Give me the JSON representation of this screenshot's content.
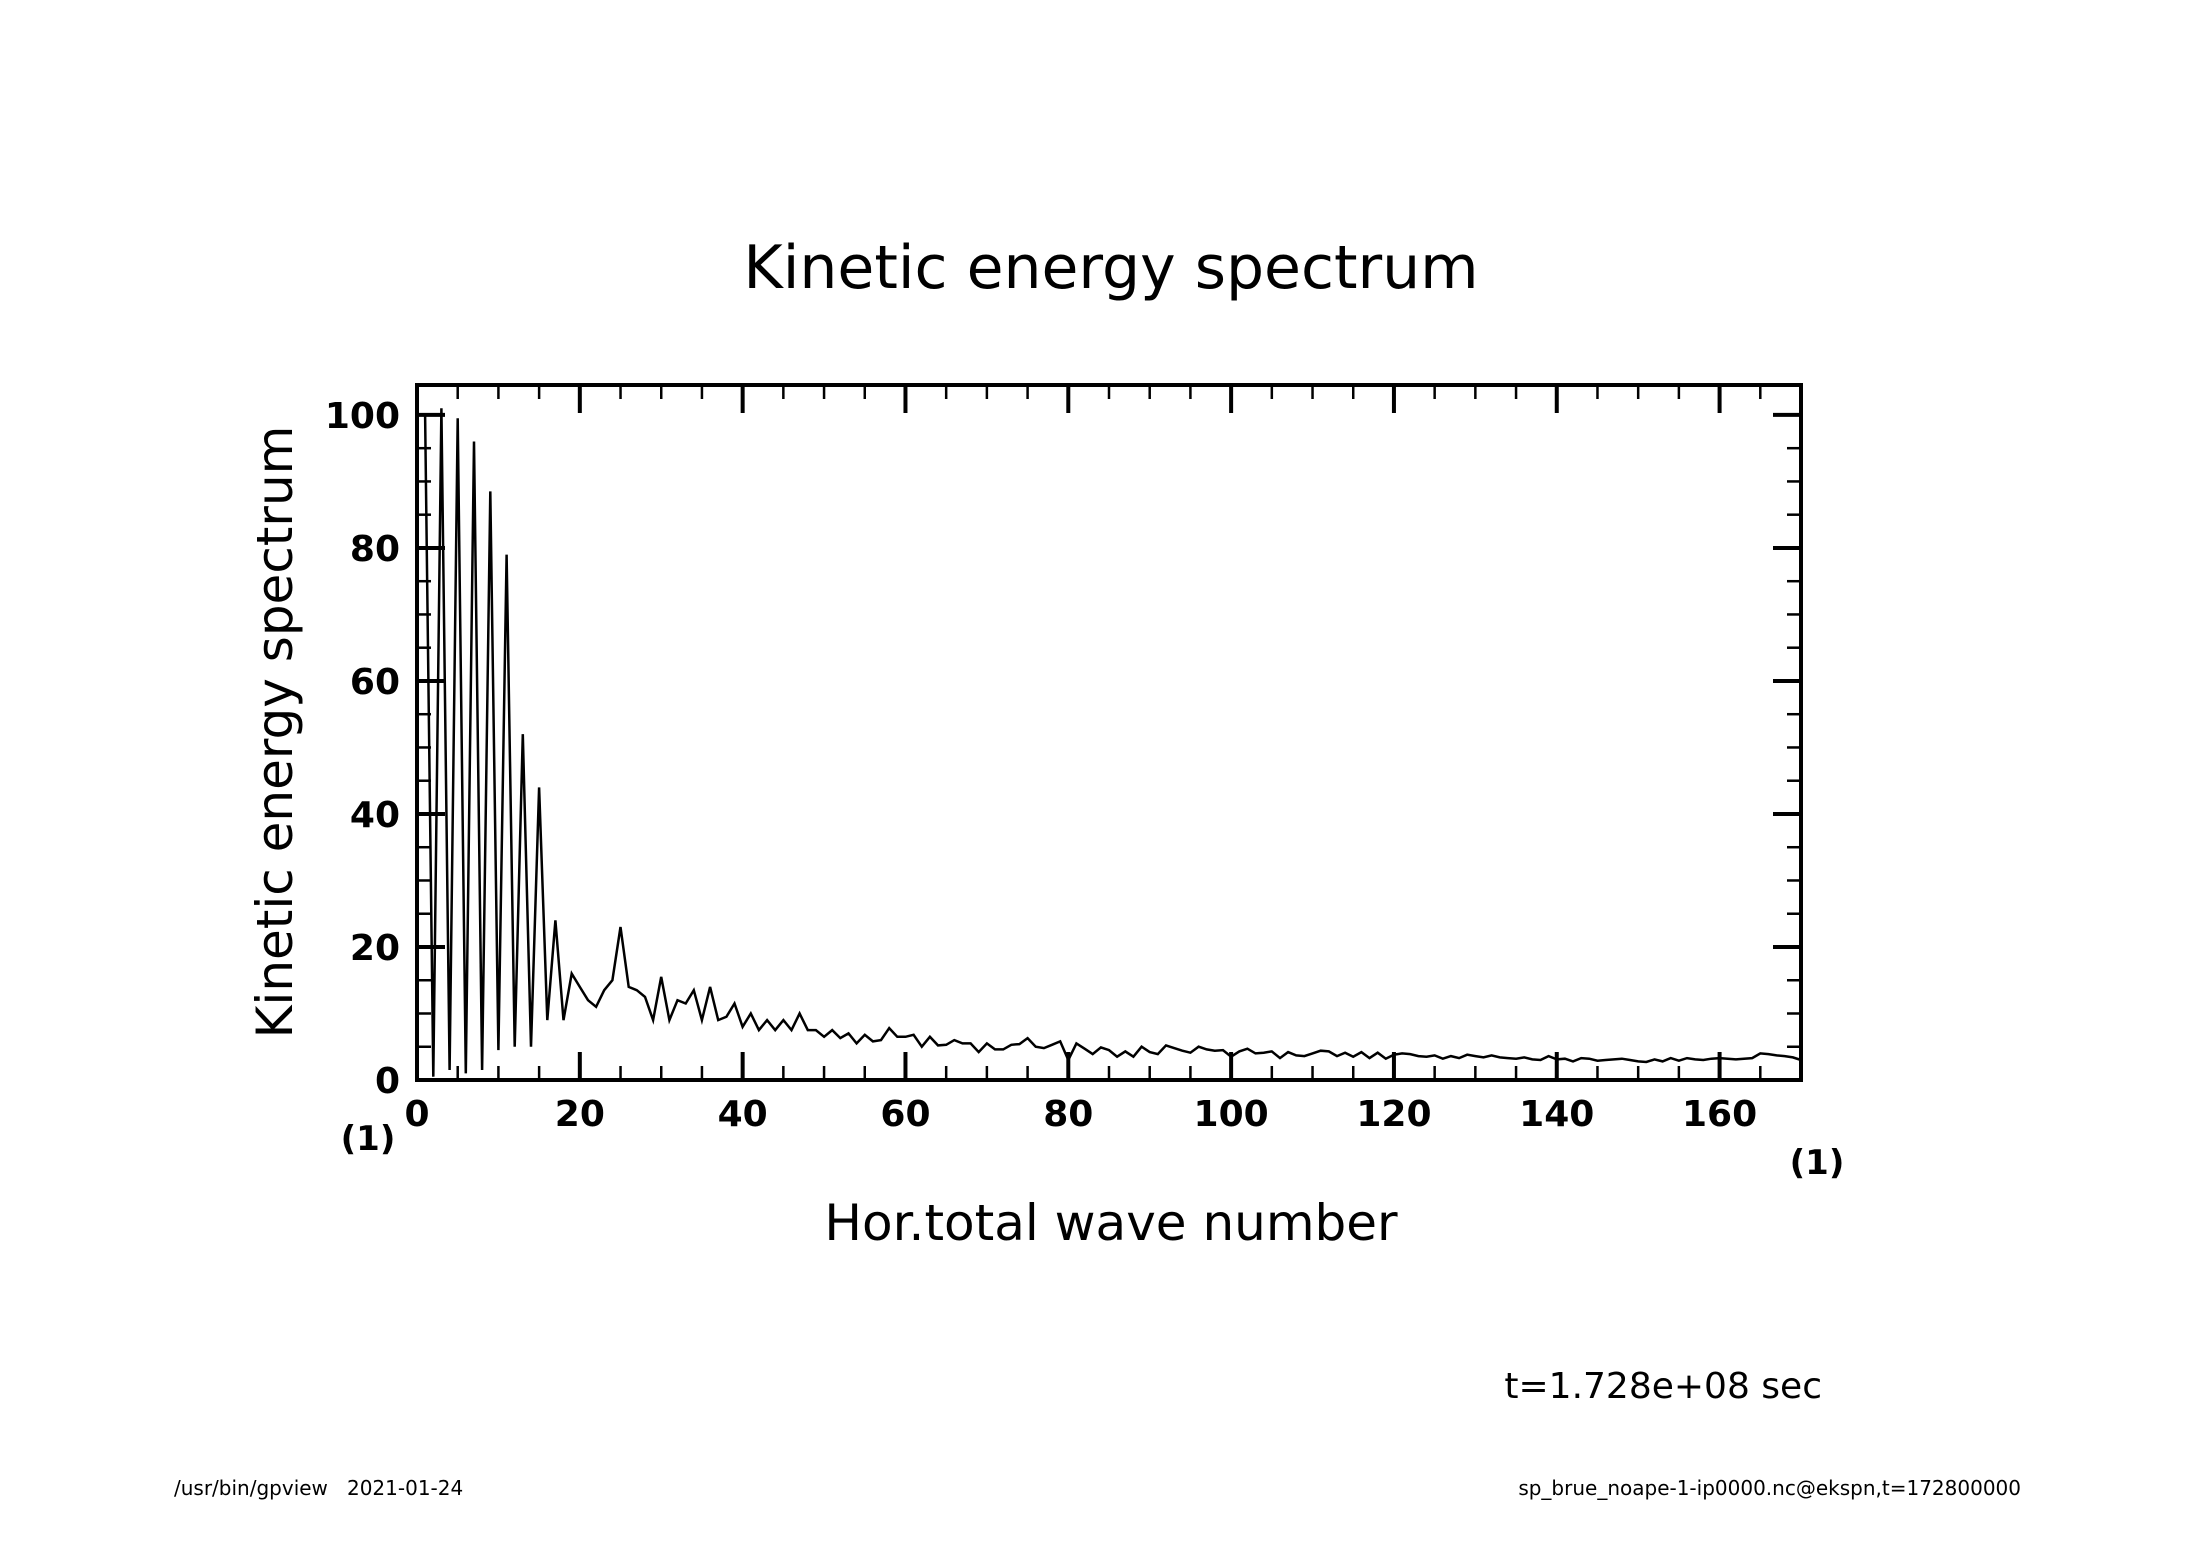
{
  "chart_data": {
    "type": "line",
    "title": "Kinetic energy spectrum",
    "xlabel": "Hor.total wave number",
    "ylabel": "Kinetic energy spectrum",
    "x_unit": "(1)",
    "y_unit": "(1)",
    "xlim": [
      0,
      170
    ],
    "ylim": [
      0,
      104.5
    ],
    "xticks": [
      0,
      20,
      40,
      60,
      80,
      100,
      120,
      140,
      160
    ],
    "yticks": [
      0,
      20,
      40,
      60,
      80,
      100
    ],
    "x_minor_step": 5,
    "y_minor_step": 5,
    "grid": false,
    "x_start": 1,
    "values": [
      100,
      0.5,
      101,
      1.5,
      99.5,
      1,
      96,
      1.5,
      88.5,
      4.5,
      79,
      5,
      52,
      5,
      44,
      9,
      24,
      9,
      16,
      14,
      12,
      11,
      13.5,
      15,
      23,
      14,
      13.5,
      12.5,
      9,
      15.5,
      9,
      12,
      11.5,
      13.5,
      9,
      14,
      9,
      9.5,
      11.5,
      8,
      10,
      7.5,
      9,
      7.5,
      9,
      7.5,
      10,
      7.5,
      7.5,
      6.5,
      7.5,
      6.3,
      7,
      5.5,
      6.8,
      5.8,
      6,
      7.8,
      6.5,
      6.5,
      6.8,
      5,
      6.5,
      5.2,
      5.3,
      6,
      5.5,
      5.5,
      4.2,
      5.5,
      4.6,
      4.6,
      5.3,
      5.4,
      6.3,
      5,
      4.8,
      5.3,
      5.8,
      3,
      5.5,
      4.7,
      3.9,
      4.9,
      4.5,
      3.5,
      4.3,
      3.5,
      5,
      4.2,
      3.9,
      5.2,
      4.8,
      4.4,
      4.1,
      5,
      4.6,
      4.4,
      4.5,
      3.5,
      4.3,
      4.7,
      4,
      4.1,
      4.3,
      3.3,
      4.2,
      3.7,
      3.6,
      4,
      4.4,
      4.3,
      3.6,
      4.1,
      3.5,
      4.2,
      3.3,
      4.1,
      3.2,
      3.8,
      4,
      3.9,
      3.6,
      3.5,
      3.7,
      3.2,
      3.6,
      3.3,
      3.8,
      3.6,
      3.4,
      3.7,
      3.4,
      3.3,
      3.2,
      3.4,
      3.1,
      3,
      3.6,
      3.1,
      3.2,
      2.8,
      3.3,
      3.2,
      2.9,
      3,
      3.1,
      3.2,
      3,
      2.8,
      2.7,
      3.1,
      2.8,
      3.3,
      2.9,
      3.3,
      3.1,
      3,
      3.2,
      3.3,
      3.2,
      3.1,
      3.2,
      3.3,
      4,
      3.9,
      3.7,
      3.6,
      3.4,
      3
    ]
  },
  "annotation": "t=1.728e+08 sec",
  "footer": {
    "left": "/usr/bin/gpview   2021-01-24",
    "right": "sp_brue_noape-1-ip0000.nc@ekspn,t=172800000"
  }
}
